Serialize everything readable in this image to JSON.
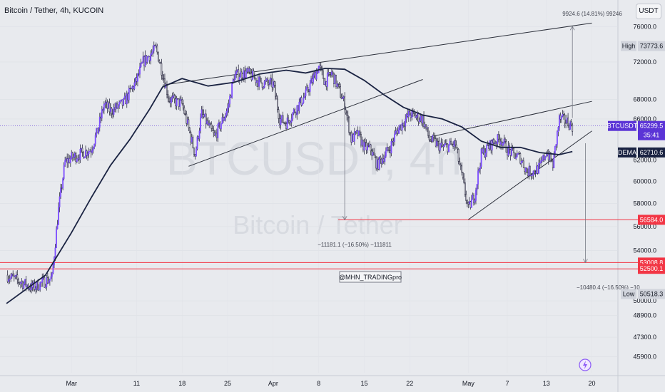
{
  "header": {
    "title": "Bitcoin / Tether, 4h, KUCOIN",
    "currency": "USDT"
  },
  "watermark": {
    "symbol": "BTCUSDT, 4h",
    "name": "Bitcoin / Tether"
  },
  "author_label": "@MHN_TRADINGpro",
  "measures": {
    "up": "9924.6 (14.81%) 99246",
    "down1": "−11181.1 (−16.50%) −111811",
    "down2": "−10480.4 (−16.50%) −10"
  },
  "price_labels": {
    "high": {
      "name": "High",
      "value": "73773.6"
    },
    "low": {
      "name": "Low",
      "value": "50518.3"
    },
    "last": {
      "name": "BTCUSDT",
      "value": "65299.5",
      "countdown": "35:41"
    },
    "dema": {
      "name": "DEMA",
      "value": "62710.6"
    },
    "levels": [
      "56584.0",
      "53008.8",
      "52500.1"
    ]
  },
  "colors": {
    "background": "#e8eaee",
    "candle": "#7c4dff",
    "wick": "#2f2f45",
    "dema_line": "#1a2342",
    "trendline": "#2a2e39",
    "support": "#f23645",
    "last_price_bg": "#5b34d6",
    "axis_text": "#131722"
  },
  "chart_data": {
    "type": "candlestick",
    "title": "Bitcoin / Tether, 4h, KUCOIN",
    "ylim": [
      44800,
      78800
    ],
    "y_scale": "log",
    "y_ticks": [
      "76000.0",
      "72000.0",
      "68000.0",
      "66000.0",
      "62000.0",
      "60000.0",
      "58000.0",
      "56000.0",
      "54000.0",
      "50000.0",
      "48900.0",
      "47300.0",
      "45900.0"
    ],
    "x_ticks": [
      "Mar",
      "11",
      "18",
      "25",
      "Apr",
      "8",
      "15",
      "22",
      "May",
      "7",
      "13",
      "20"
    ],
    "x_tick_dates": [
      "2024-03-01",
      "2024-03-11",
      "2024-03-18",
      "2024-03-25",
      "2024-04-01",
      "2024-04-08",
      "2024-04-15",
      "2024-04-22",
      "2024-05-01",
      "2024-05-07",
      "2024-05-13",
      "2024-05-20"
    ],
    "price_path": [
      {
        "date": "2024-02-20",
        "price": 52000
      },
      {
        "date": "2024-02-24",
        "price": 51000
      },
      {
        "date": "2024-02-27",
        "price": 51800
      },
      {
        "date": "2024-02-28",
        "price": 57500
      },
      {
        "date": "2024-02-29",
        "price": 61800
      },
      {
        "date": "2024-03-01",
        "price": 62200
      },
      {
        "date": "2024-03-04",
        "price": 63000
      },
      {
        "date": "2024-03-05",
        "price": 64800
      },
      {
        "date": "2024-03-06",
        "price": 67500
      },
      {
        "date": "2024-03-07",
        "price": 66800
      },
      {
        "date": "2024-03-09",
        "price": 67600
      },
      {
        "date": "2024-03-11",
        "price": 70000
      },
      {
        "date": "2024-03-12",
        "price": 72000
      },
      {
        "date": "2024-03-14",
        "price": 73500
      },
      {
        "date": "2024-03-16",
        "price": 68000
      },
      {
        "date": "2024-03-18",
        "price": 67500
      },
      {
        "date": "2024-03-20",
        "price": 62500
      },
      {
        "date": "2024-03-21",
        "price": 66500
      },
      {
        "date": "2024-03-23",
        "price": 64200
      },
      {
        "date": "2024-03-25",
        "price": 67000
      },
      {
        "date": "2024-03-26",
        "price": 70500
      },
      {
        "date": "2024-03-28",
        "price": 70800
      },
      {
        "date": "2024-03-30",
        "price": 69800
      },
      {
        "date": "2024-04-01",
        "price": 69600
      },
      {
        "date": "2024-04-02",
        "price": 66000
      },
      {
        "date": "2024-04-03",
        "price": 65600
      },
      {
        "date": "2024-04-05",
        "price": 67500
      },
      {
        "date": "2024-04-06",
        "price": 68500
      },
      {
        "date": "2024-04-08",
        "price": 71500
      },
      {
        "date": "2024-04-09",
        "price": 69800
      },
      {
        "date": "2024-04-10",
        "price": 70800
      },
      {
        "date": "2024-04-12",
        "price": 67500
      },
      {
        "date": "2024-04-13",
        "price": 64000
      },
      {
        "date": "2024-04-14",
        "price": 64500
      },
      {
        "date": "2024-04-15",
        "price": 63200
      },
      {
        "date": "2024-04-16",
        "price": 63000
      },
      {
        "date": "2024-04-17",
        "price": 61500
      },
      {
        "date": "2024-04-19",
        "price": 63200
      },
      {
        "date": "2024-04-20",
        "price": 64800
      },
      {
        "date": "2024-04-22",
        "price": 66500
      },
      {
        "date": "2024-04-24",
        "price": 66000
      },
      {
        "date": "2024-04-25",
        "price": 64000
      },
      {
        "date": "2024-04-27",
        "price": 63200
      },
      {
        "date": "2024-04-29",
        "price": 63500
      },
      {
        "date": "2024-04-30",
        "price": 60500
      },
      {
        "date": "2024-05-01",
        "price": 57500
      },
      {
        "date": "2024-05-02",
        "price": 58800
      },
      {
        "date": "2024-05-03",
        "price": 62500
      },
      {
        "date": "2024-05-05",
        "price": 63800
      },
      {
        "date": "2024-05-06",
        "price": 64000
      },
      {
        "date": "2024-05-07",
        "price": 63000
      },
      {
        "date": "2024-05-08",
        "price": 62500
      },
      {
        "date": "2024-05-09",
        "price": 62200
      },
      {
        "date": "2024-05-10",
        "price": 60900
      },
      {
        "date": "2024-05-11",
        "price": 60900
      },
      {
        "date": "2024-05-12",
        "price": 61300
      },
      {
        "date": "2024-05-13",
        "price": 62800
      },
      {
        "date": "2024-05-14",
        "price": 61500
      },
      {
        "date": "2024-05-15",
        "price": 66000
      },
      {
        "date": "2024-05-16",
        "price": 65800
      },
      {
        "date": "2024-05-17",
        "price": 65300
      }
    ],
    "dema_path": [
      {
        "date": "2024-02-20",
        "price": 49800
      },
      {
        "date": "2024-02-26",
        "price": 52000
      },
      {
        "date": "2024-03-01",
        "price": 55500
      },
      {
        "date": "2024-03-04",
        "price": 58500
      },
      {
        "date": "2024-03-07",
        "price": 61500
      },
      {
        "date": "2024-03-10",
        "price": 64000
      },
      {
        "date": "2024-03-13",
        "price": 67000
      },
      {
        "date": "2024-03-15",
        "price": 69300
      },
      {
        "date": "2024-03-18",
        "price": 70200
      },
      {
        "date": "2024-03-22",
        "price": 69400
      },
      {
        "date": "2024-03-26",
        "price": 69800
      },
      {
        "date": "2024-03-30",
        "price": 70700
      },
      {
        "date": "2024-04-03",
        "price": 71100
      },
      {
        "date": "2024-04-06",
        "price": 70800
      },
      {
        "date": "2024-04-09",
        "price": 71300
      },
      {
        "date": "2024-04-12",
        "price": 71200
      },
      {
        "date": "2024-04-15",
        "price": 70000
      },
      {
        "date": "2024-04-18",
        "price": 68500
      },
      {
        "date": "2024-04-21",
        "price": 67200
      },
      {
        "date": "2024-04-24",
        "price": 66400
      },
      {
        "date": "2024-04-27",
        "price": 66000
      },
      {
        "date": "2024-04-30",
        "price": 65200
      },
      {
        "date": "2024-05-03",
        "price": 63800
      },
      {
        "date": "2024-05-06",
        "price": 63200
      },
      {
        "date": "2024-05-09",
        "price": 63200
      },
      {
        "date": "2024-05-12",
        "price": 62700
      },
      {
        "date": "2024-05-15",
        "price": 62500
      },
      {
        "date": "2024-05-17",
        "price": 62800
      }
    ],
    "trendlines": [
      {
        "from": {
          "date": "2024-03-15",
          "price": 69500
        },
        "to": {
          "date": "2024-05-20",
          "price": 76400
        }
      },
      {
        "from": {
          "date": "2024-03-19",
          "price": 61400
        },
        "to": {
          "date": "2024-04-24",
          "price": 70100
        }
      },
      {
        "from": {
          "date": "2024-04-25",
          "price": 64200
        },
        "to": {
          "date": "2024-05-20",
          "price": 67800
        }
      },
      {
        "from": {
          "date": "2024-05-01",
          "price": 56600
        },
        "to": {
          "date": "2024-05-20",
          "price": 64800
        }
      }
    ],
    "horizontal_levels": [
      56584.0,
      53008.8,
      52500.1
    ],
    "high": 73773.6,
    "low": 50518.3,
    "last_price": 65299.5,
    "dema_last": 62710.6
  }
}
